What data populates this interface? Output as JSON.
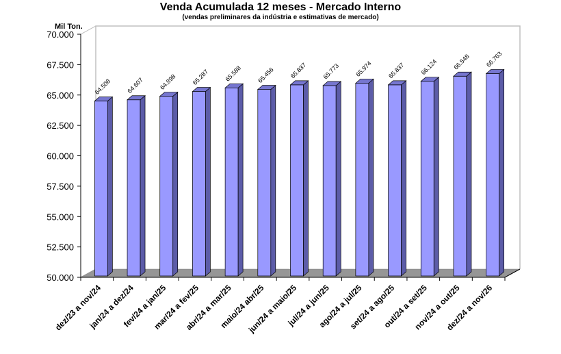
{
  "chart_data": {
    "type": "bar",
    "style": "3d-column",
    "title": "Venda Acumulada 12 meses -  Mercado Interno",
    "subtitle": "(vendas preliminares da indústria e estimativas de mercado)",
    "ylabel": "Mil Ton.",
    "xlabel": "",
    "ylim": [
      50000,
      70000
    ],
    "yticks": [
      "50.000",
      "52.500",
      "55.000",
      "57.500",
      "60.000",
      "62.500",
      "65.000",
      "67.500",
      "70.000"
    ],
    "grid": false,
    "legend": null,
    "categories": [
      "dez/23 a nov/24",
      "jan/24 a dez/24",
      "fev/24 a jan/25",
      "mar/24 a fev/25",
      "abr/24 a mar/25",
      "maio/24 abr/25",
      "jun/24 a maio/25",
      "jul/24 a jun/25",
      "ago/24 a jul/25",
      "set/24 a ago/25",
      "out/24 a set/25",
      "nov/24 a out/25",
      "dez/24 a nov/26"
    ],
    "values": [
      64508,
      64607,
      64898,
      65287,
      65588,
      65456,
      65837,
      65773,
      65974,
      65837,
      66124,
      66548,
      66763
    ],
    "value_labels": [
      "64.508",
      "64.607",
      "64.898",
      "65.287",
      "65.588",
      "65.456",
      "65.837",
      "65.773",
      "65.974",
      "65.837",
      "66.124",
      "66.548",
      "66.763"
    ],
    "colors": {
      "bar_front": "#9999ff",
      "bar_side": "#5c5ca8",
      "bar_top": "#7676d0",
      "floor": "#969696",
      "wall_border": "#c0c0c0"
    }
  }
}
